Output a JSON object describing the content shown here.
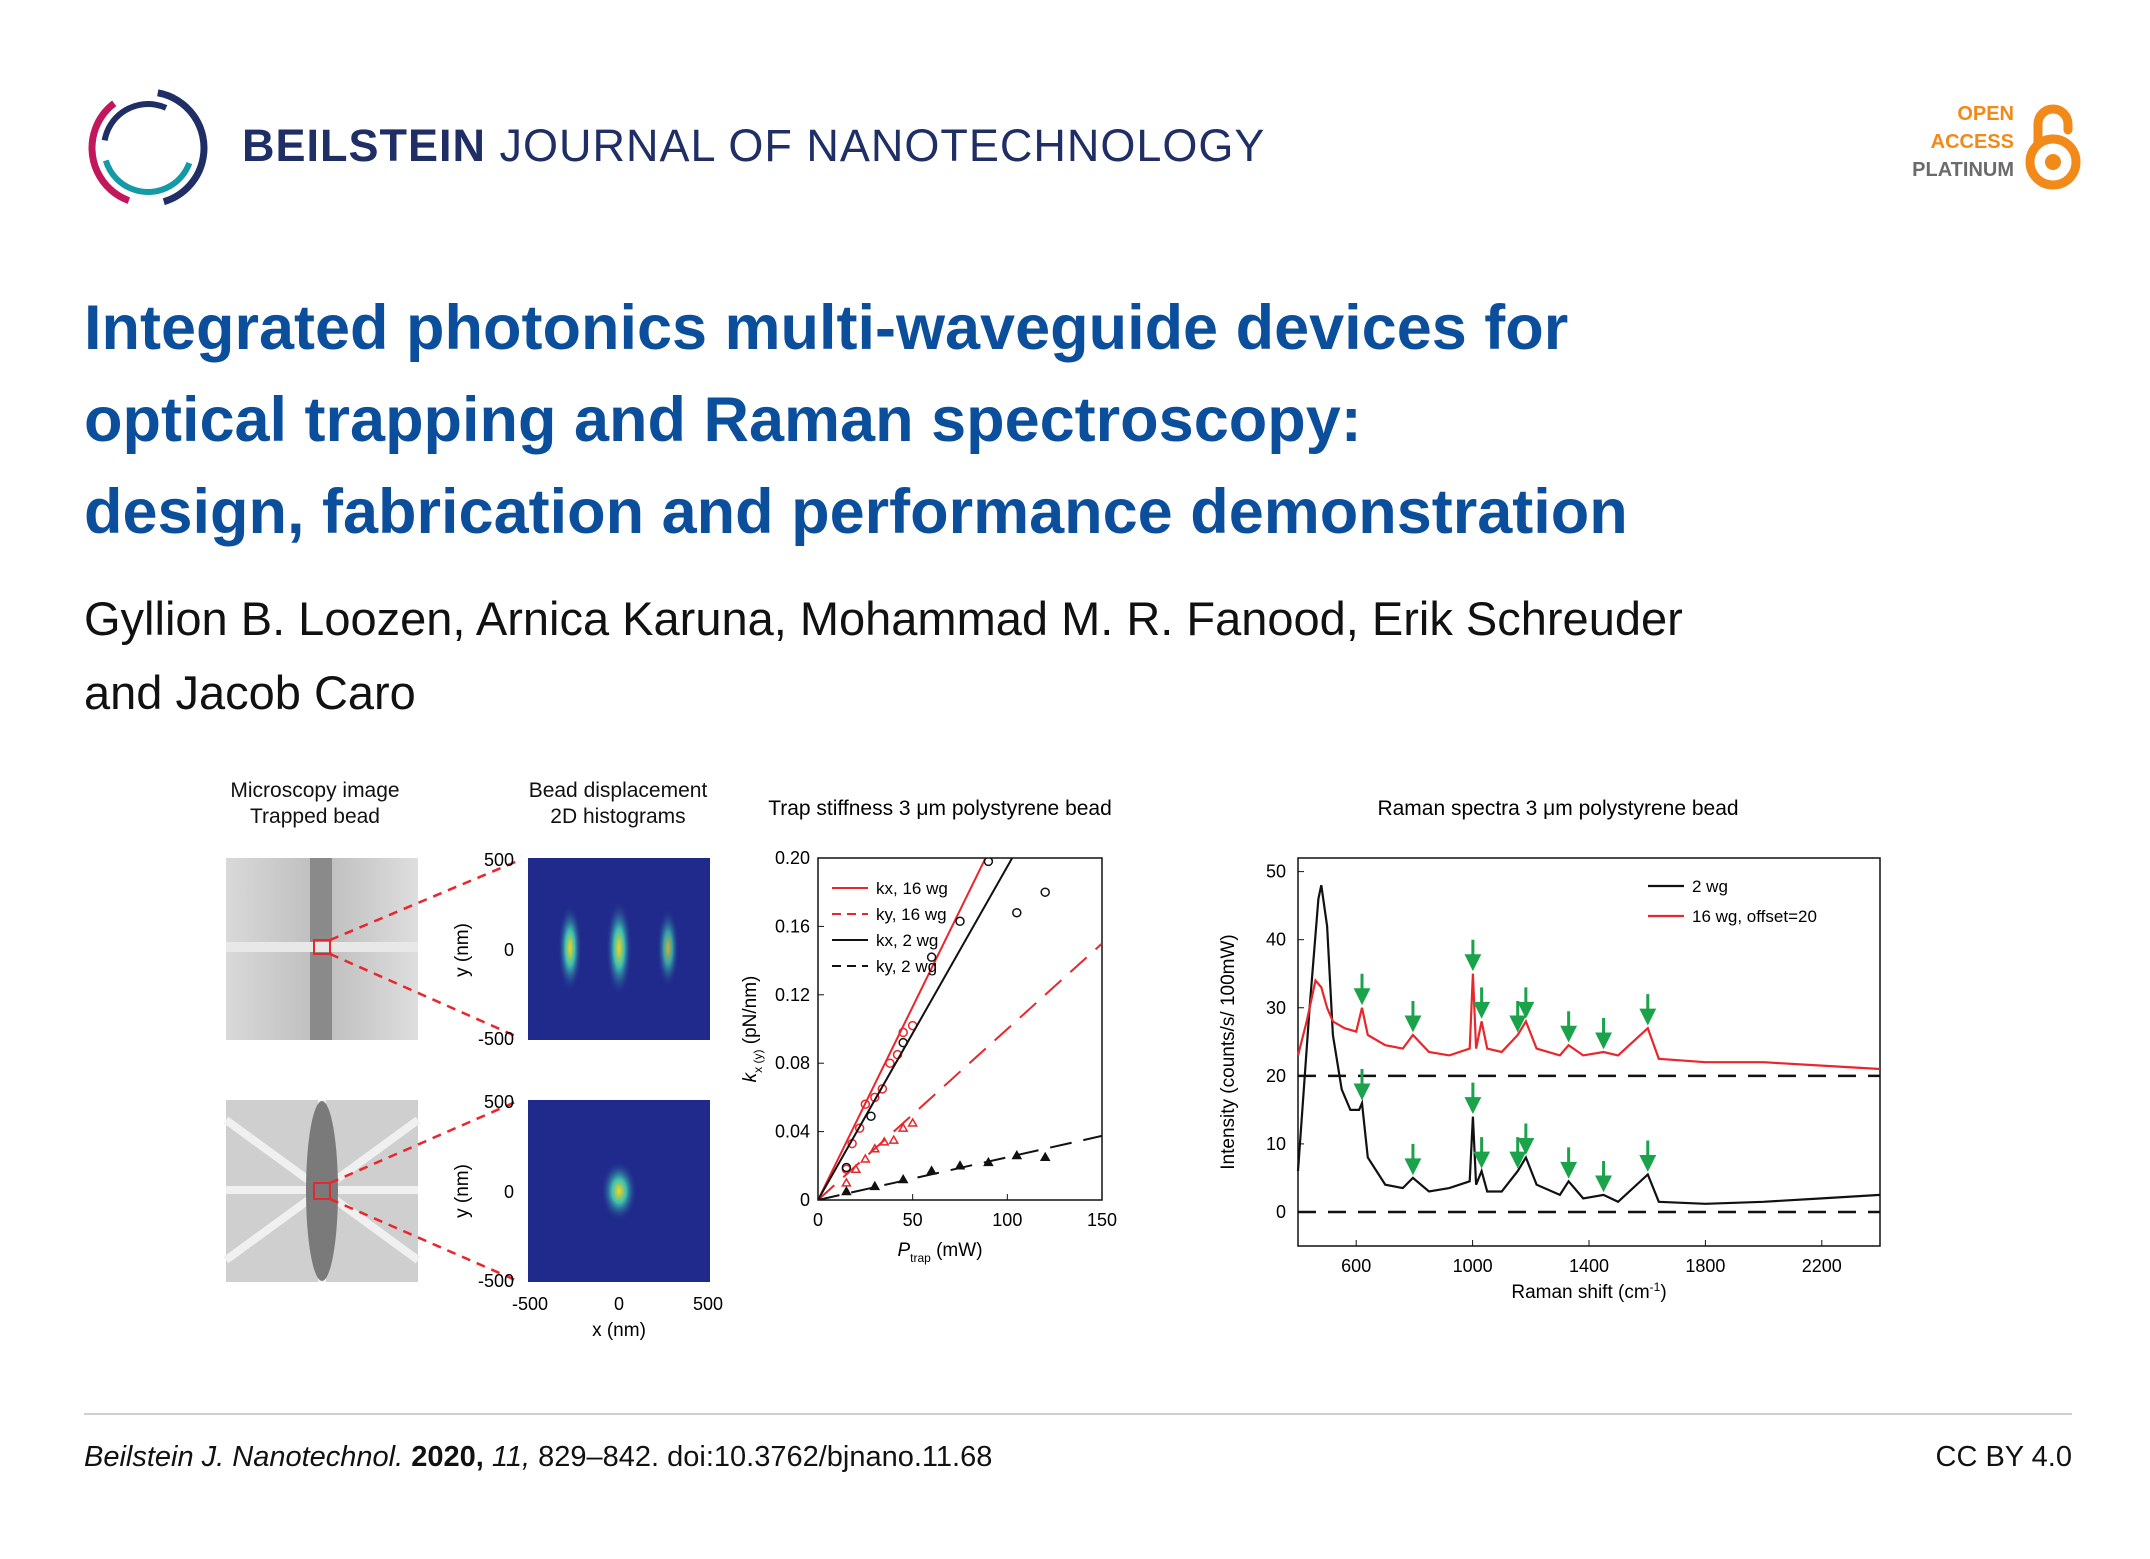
{
  "header": {
    "journal_bold": "BEILSTEIN",
    "journal_rest": " JOURNAL OF NANOTECHNOLOGY",
    "logo_icon": "beilstein-ring-logo",
    "badge": {
      "open": "OPEN",
      "access": "ACCESS",
      "platinum": "PLATINUM",
      "icon": "open-access-lock-icon"
    }
  },
  "article": {
    "title_lines": [
      "Integrated photonics multi-waveguide devices for",
      "optical trapping and Raman spectroscopy:",
      "design, fabrication and performance demonstration"
    ],
    "author_lines": [
      "Gyllion B. Loozen, Arnica Karuna, Mohammad M. R. Fanood, Erik Schreuder",
      "and Jacob Caro"
    ]
  },
  "figure": {
    "panel1": {
      "title_lines": [
        "Microscopy image",
        "Trapped bead"
      ]
    },
    "panel2": {
      "title_lines": [
        "Bead displacement",
        "2D histograms"
      ],
      "y_ticks": [
        "500",
        "0",
        "-500"
      ],
      "x_ticks": [
        "-500",
        "0",
        "500"
      ],
      "ylabel": "y (nm)",
      "xlabel": "x (nm)"
    },
    "colors": {
      "red": "#e8262b",
      "black": "#111111",
      "arrow_green": "#1aa34a",
      "histogram_bg": "#202a8c"
    }
  },
  "chart_data": [
    {
      "type": "scatter",
      "title": "Trap stiffness 3 μm polystyrene bead",
      "xlabel": "P",
      "xlabel_sub": "trap",
      "xlabel_unit": " (mW)",
      "ylabel": "k",
      "ylabel_sub": "x (y)",
      "ylabel_unit": " (pN/nm)",
      "xlim": [
        0,
        150
      ],
      "ylim": [
        0,
        0.2
      ],
      "x_ticks": [
        "0",
        "50",
        "100",
        "150"
      ],
      "y_ticks": [
        "0",
        "0.04",
        "0.08",
        "0.12",
        "0.16",
        "0.20"
      ],
      "legend_position": "top-left",
      "series": [
        {
          "name": "kx, 16 wg",
          "color": "#e8262b",
          "dash": "solid",
          "marker": "circle",
          "fit_slope": 0.00226,
          "points": [
            [
              15,
              0.018
            ],
            [
              18,
              0.033
            ],
            [
              22,
              0.042
            ],
            [
              25,
              0.056
            ],
            [
              30,
              0.06
            ],
            [
              34,
              0.065
            ],
            [
              38,
              0.08
            ],
            [
              42,
              0.085
            ],
            [
              45,
              0.098
            ],
            [
              50,
              0.102
            ]
          ]
        },
        {
          "name": "ky, 16 wg",
          "color": "#e8262b",
          "dash": "dashed",
          "marker": "triangle",
          "fit_slope": 0.001,
          "points": [
            [
              15,
              0.01
            ],
            [
              20,
              0.018
            ],
            [
              25,
              0.024
            ],
            [
              30,
              0.03
            ],
            [
              35,
              0.034
            ],
            [
              40,
              0.035
            ],
            [
              45,
              0.042
            ],
            [
              50,
              0.045
            ]
          ]
        },
        {
          "name": "kx, 2 wg",
          "color": "#111111",
          "dash": "solid",
          "marker": "circle",
          "fit_slope": 0.00195,
          "points": [
            [
              15,
              0.019
            ],
            [
              28,
              0.049
            ],
            [
              45,
              0.092
            ],
            [
              60,
              0.142
            ],
            [
              75,
              0.163
            ],
            [
              90,
              0.198
            ],
            [
              105,
              0.168
            ],
            [
              120,
              0.18
            ]
          ]
        },
        {
          "name": "ky, 2 wg",
          "color": "#111111",
          "dash": "dashed",
          "marker": "triangle",
          "fit_slope": 0.00025,
          "points": [
            [
              15,
              0.005
            ],
            [
              30,
              0.008
            ],
            [
              45,
              0.012
            ],
            [
              60,
              0.017
            ],
            [
              75,
              0.02
            ],
            [
              90,
              0.022
            ],
            [
              105,
              0.026
            ],
            [
              120,
              0.025
            ]
          ]
        }
      ]
    },
    {
      "type": "line",
      "title": "Raman spectra 3 μm polystyrene bead",
      "xlabel": "Raman shift (cm",
      "xlabel_sup": "-1",
      "xlabel_end": ")",
      "ylabel": "Intensity (counts/s/ 100mW)",
      "xlim": [
        400,
        2400
      ],
      "ylim": [
        -5,
        52
      ],
      "x_ticks": [
        600,
        1000,
        1400,
        1800,
        2200
      ],
      "y_ticks": [
        0,
        10,
        20,
        30,
        40,
        50
      ],
      "legend_position": "top-right",
      "baselines": [
        0,
        20
      ],
      "peaks_marked_cm-1": [
        620,
        795,
        1001,
        1031,
        1155,
        1183,
        1330,
        1450,
        1602
      ],
      "series": [
        {
          "name": "2 wg",
          "color": "#111111",
          "x": [
            400,
            440,
            470,
            480,
            500,
            520,
            550,
            580,
            610,
            620,
            640,
            700,
            760,
            795,
            850,
            920,
            990,
            1001,
            1012,
            1031,
            1050,
            1100,
            1155,
            1183,
            1220,
            1300,
            1330,
            1380,
            1450,
            1500,
            1602,
            1640,
            1800,
            2000,
            2200,
            2400
          ],
          "y": [
            6,
            30,
            46,
            48,
            42,
            26,
            18,
            15,
            15,
            16,
            8,
            4,
            3.5,
            5,
            3,
            3.5,
            4.5,
            14,
            4,
            6,
            3,
            3,
            6,
            8,
            4,
            2.5,
            4.5,
            2,
            2.5,
            1.5,
            5.5,
            1.5,
            1.2,
            1.5,
            2,
            2.5
          ]
        },
        {
          "name": "16 wg, offset=20",
          "color": "#e8262b",
          "x": [
            400,
            430,
            460,
            480,
            500,
            520,
            560,
            600,
            620,
            640,
            700,
            760,
            795,
            850,
            920,
            990,
            1001,
            1012,
            1031,
            1050,
            1100,
            1155,
            1183,
            1220,
            1300,
            1330,
            1380,
            1450,
            1500,
            1602,
            1640,
            1800,
            2000,
            2200,
            2400
          ],
          "y": [
            23,
            28,
            34,
            33,
            30,
            28,
            27,
            26.5,
            30,
            26,
            24.5,
            24,
            26,
            23.5,
            23,
            24,
            35,
            24,
            28,
            24,
            23.5,
            26,
            28,
            24,
            23,
            24.5,
            23,
            23.5,
            23,
            27,
            22.5,
            22,
            22,
            21.5,
            21
          ]
        }
      ]
    }
  ],
  "footer": {
    "journal_abbrev": "Beilstein J. Nanotechnol.",
    "year": "2020,",
    "volume": "11,",
    "pages_doi": " 829–842. doi:10.3762/bjnano.11.68",
    "license": "CC BY 4.0"
  }
}
